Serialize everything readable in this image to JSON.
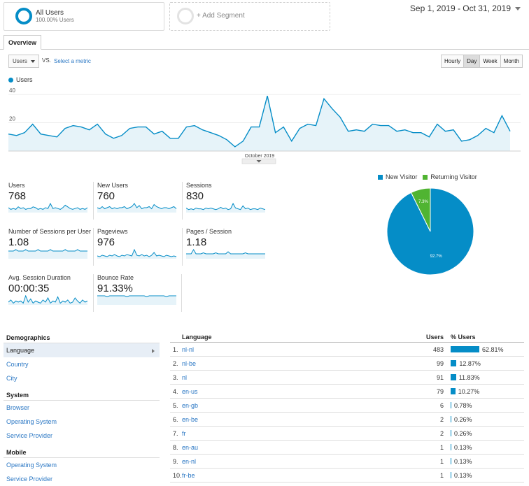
{
  "segments": {
    "all": {
      "title": "All Users",
      "subtitle": "100.00% Users"
    },
    "add": {
      "label": "+ Add Segment"
    }
  },
  "date_range": "Sep 1, 2019 - Oct 31, 2019",
  "tab": "Overview",
  "metric_selector": {
    "value": "Users",
    "vs": "VS.",
    "select_label": "Select a metric"
  },
  "granularity": [
    {
      "label": "Hourly",
      "active": false
    },
    {
      "label": "Day",
      "active": true
    },
    {
      "label": "Week",
      "active": false
    },
    {
      "label": "Month",
      "active": false
    }
  ],
  "chart_data": {
    "type": "area",
    "series": [
      {
        "name": "Users",
        "values": [
          12,
          11,
          13,
          19,
          12,
          11,
          10,
          16,
          18,
          17,
          15,
          19,
          12,
          9,
          11,
          16,
          17,
          17,
          12,
          14,
          9,
          9,
          17,
          18,
          15,
          13,
          11,
          8,
          3,
          7,
          17,
          17,
          39,
          13,
          17,
          7,
          16,
          19,
          18,
          37,
          30,
          24,
          14,
          15,
          14,
          19,
          18,
          18,
          14,
          15,
          13,
          13,
          10,
          19,
          14,
          15,
          7,
          8,
          11,
          16,
          13,
          25,
          14
        ]
      }
    ],
    "x_label": "October 2019",
    "y_ticks": [
      20,
      40
    ],
    "ylim": [
      0,
      45
    ],
    "color": "#058dc7"
  },
  "legend_label": "Users",
  "scorecards": [
    {
      "label": "Users",
      "value": "768",
      "spark": [
        5,
        3,
        4,
        3,
        6,
        4,
        5,
        3,
        4,
        4,
        6,
        5,
        3,
        4,
        3,
        5,
        4,
        10,
        4,
        5,
        4,
        3,
        5,
        8,
        6,
        4,
        3,
        4,
        5,
        3,
        4,
        3,
        5
      ]
    },
    {
      "label": "New Users",
      "value": "760",
      "spark": [
        4,
        3,
        5,
        3,
        4,
        5,
        3,
        4,
        3,
        4,
        4,
        5,
        3,
        4,
        5,
        8,
        4,
        6,
        3,
        4,
        4,
        5,
        3,
        7,
        5,
        4,
        3,
        4,
        4,
        3,
        4,
        5,
        3
      ]
    },
    {
      "label": "Sessions",
      "value": "830",
      "spark": [
        5,
        3,
        4,
        3,
        5,
        4,
        4,
        3,
        5,
        4,
        5,
        4,
        3,
        4,
        6,
        4,
        5,
        3,
        4,
        11,
        5,
        4,
        3,
        8,
        4,
        5,
        3,
        4,
        4,
        3,
        5,
        4,
        3
      ]
    },
    {
      "label": "Number of Sessions per User",
      "value": "1.08",
      "spark": [
        5,
        5,
        5,
        6,
        5,
        5,
        5,
        6,
        5,
        5,
        5,
        5,
        6,
        5,
        5,
        5,
        5,
        6,
        5,
        5,
        5,
        5,
        5,
        6,
        5,
        5,
        5,
        5,
        6,
        5,
        5,
        5,
        5
      ]
    },
    {
      "label": "Pageviews",
      "value": "976",
      "spark": [
        3,
        2,
        4,
        3,
        2,
        4,
        3,
        5,
        3,
        2,
        4,
        3,
        5,
        4,
        3,
        12,
        4,
        3,
        5,
        3,
        4,
        2,
        4,
        8,
        3,
        4,
        3,
        2,
        4,
        3,
        2,
        3,
        2
      ]
    },
    {
      "label": "Pages / Session",
      "value": "1.18",
      "spark": [
        4,
        4,
        4,
        8,
        4,
        4,
        4,
        5,
        4,
        4,
        4,
        4,
        5,
        4,
        4,
        4,
        4,
        6,
        4,
        4,
        4,
        4,
        4,
        4,
        5,
        4,
        4,
        4,
        4,
        4,
        4,
        4,
        4
      ]
    },
    {
      "label": "Avg. Session Duration",
      "value": "00:00:35",
      "spark": [
        2,
        4,
        1,
        3,
        2,
        3,
        1,
        8,
        2,
        5,
        1,
        3,
        2,
        1,
        4,
        2,
        6,
        1,
        3,
        2,
        7,
        1,
        3,
        2,
        4,
        1,
        2,
        6,
        3,
        1,
        4,
        2,
        3
      ]
    },
    {
      "label": "Bounce Rate",
      "value": "91.33%",
      "spark": [
        8,
        8,
        8,
        8,
        7,
        8,
        8,
        8,
        8,
        8,
        8,
        8,
        7,
        8,
        8,
        8,
        8,
        8,
        8,
        8,
        7,
        8,
        8,
        8,
        8,
        8,
        8,
        8,
        7,
        8,
        8,
        8,
        8
      ]
    }
  ],
  "pie": {
    "legend": [
      {
        "name": "New Visitor",
        "color": "#058dc7"
      },
      {
        "name": "Returning Visitor",
        "color": "#50b432"
      }
    ],
    "slices": [
      {
        "name": "New Visitor",
        "value": 92.7,
        "label": "92.7%",
        "color": "#058dc7"
      },
      {
        "name": "Returning Visitor",
        "value": 7.3,
        "label": "7.3%",
        "color": "#50b432"
      }
    ]
  },
  "sidebar": {
    "sections": [
      {
        "title": "Demographics",
        "items": [
          {
            "label": "Language",
            "selected": true
          },
          {
            "label": "Country",
            "selected": false
          },
          {
            "label": "City",
            "selected": false
          }
        ]
      },
      {
        "title": "System",
        "items": [
          {
            "label": "Browser",
            "selected": false
          },
          {
            "label": "Operating System",
            "selected": false
          },
          {
            "label": "Service Provider",
            "selected": false
          }
        ]
      },
      {
        "title": "Mobile",
        "items": [
          {
            "label": "Operating System",
            "selected": false
          },
          {
            "label": "Service Provider",
            "selected": false
          }
        ]
      }
    ]
  },
  "language_table": {
    "headers": {
      "language": "Language",
      "users": "Users",
      "pct": "% Users"
    },
    "rows": [
      {
        "idx": "1.",
        "lang": "nl-nl",
        "users": "483",
        "pct": "62.81%",
        "share": 62.81
      },
      {
        "idx": "2.",
        "lang": "nl-be",
        "users": "99",
        "pct": "12.87%",
        "share": 12.87
      },
      {
        "idx": "3.",
        "lang": "nl",
        "users": "91",
        "pct": "11.83%",
        "share": 11.83
      },
      {
        "idx": "4.",
        "lang": "en-us",
        "users": "79",
        "pct": "10.27%",
        "share": 10.27
      },
      {
        "idx": "5.",
        "lang": "en-gb",
        "users": "6",
        "pct": "0.78%",
        "share": 0.78
      },
      {
        "idx": "6.",
        "lang": "en-be",
        "users": "2",
        "pct": "0.26%",
        "share": 0.26
      },
      {
        "idx": "7.",
        "lang": "fr",
        "users": "2",
        "pct": "0.26%",
        "share": 0.26
      },
      {
        "idx": "8.",
        "lang": "en-au",
        "users": "1",
        "pct": "0.13%",
        "share": 0.13
      },
      {
        "idx": "9.",
        "lang": "en-nl",
        "users": "1",
        "pct": "0.13%",
        "share": 0.13
      },
      {
        "idx": "10.",
        "lang": "fr-be",
        "users": "1",
        "pct": "0.13%",
        "share": 0.13
      }
    ]
  }
}
